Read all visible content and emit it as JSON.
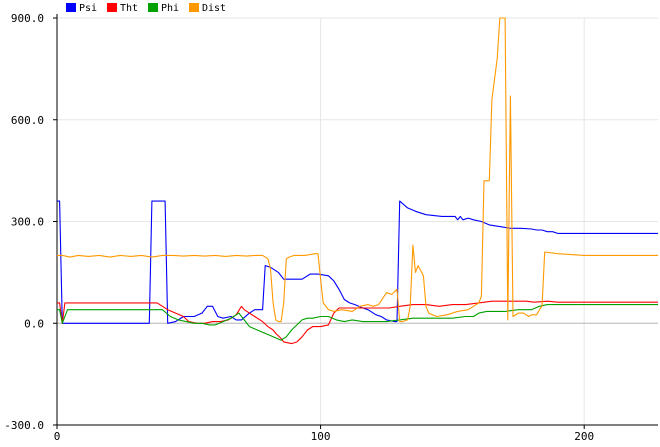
{
  "chart_data": {
    "type": "line",
    "title": "",
    "xlabel": "",
    "ylabel": "",
    "xlim": [
      0,
      228
    ],
    "ylim": [
      -300,
      900
    ],
    "x_ticks": [
      0,
      100,
      200
    ],
    "x_tick_labels": [
      "0",
      "100",
      "200"
    ],
    "y_ticks": [
      900,
      600,
      300,
      0,
      -300
    ],
    "y_tick_labels": [
      "900.0",
      "600.0",
      "300.0",
      "0.0",
      "-300.0"
    ],
    "grid": true,
    "legend_position": "top-left",
    "series": [
      {
        "name": "Psi",
        "color": "#0000ff",
        "points": [
          [
            0,
            360
          ],
          [
            1,
            360
          ],
          [
            2,
            0
          ],
          [
            35,
            0
          ],
          [
            36,
            360
          ],
          [
            41,
            360
          ],
          [
            42,
            0
          ],
          [
            45,
            5
          ],
          [
            48,
            20
          ],
          [
            52,
            20
          ],
          [
            55,
            30
          ],
          [
            57,
            50
          ],
          [
            59,
            50
          ],
          [
            61,
            20
          ],
          [
            63,
            15
          ],
          [
            66,
            20
          ],
          [
            68,
            10
          ],
          [
            70,
            10
          ],
          [
            73,
            30
          ],
          [
            75,
            40
          ],
          [
            78,
            40
          ],
          [
            79,
            170
          ],
          [
            81,
            165
          ],
          [
            84,
            150
          ],
          [
            86,
            130
          ],
          [
            89,
            130
          ],
          [
            93,
            130
          ],
          [
            96,
            145
          ],
          [
            99,
            145
          ],
          [
            103,
            140
          ],
          [
            105,
            125
          ],
          [
            107,
            100
          ],
          [
            109,
            70
          ],
          [
            111,
            60
          ],
          [
            113,
            55
          ],
          [
            116,
            45
          ],
          [
            118,
            40
          ],
          [
            121,
            25
          ],
          [
            123,
            20
          ],
          [
            125,
            10
          ],
          [
            128,
            5
          ],
          [
            129,
            5
          ],
          [
            130,
            360
          ],
          [
            133,
            340
          ],
          [
            136,
            330
          ],
          [
            140,
            320
          ],
          [
            146,
            315
          ],
          [
            151,
            315
          ],
          [
            152,
            305
          ],
          [
            153,
            315
          ],
          [
            154,
            305
          ],
          [
            156,
            310
          ],
          [
            158,
            305
          ],
          [
            161,
            300
          ],
          [
            164,
            290
          ],
          [
            168,
            285
          ],
          [
            172,
            280
          ],
          [
            176,
            280
          ],
          [
            180,
            278
          ],
          [
            182,
            275
          ],
          [
            184,
            275
          ],
          [
            186,
            270
          ],
          [
            188,
            270
          ],
          [
            190,
            265
          ],
          [
            200,
            265
          ],
          [
            210,
            265
          ],
          [
            228,
            265
          ]
        ]
      },
      {
        "name": "Tht",
        "color": "#ff0000",
        "points": [
          [
            0,
            60
          ],
          [
            1,
            60
          ],
          [
            2,
            0
          ],
          [
            3,
            60
          ],
          [
            35,
            60
          ],
          [
            38,
            60
          ],
          [
            42,
            40
          ],
          [
            45,
            30
          ],
          [
            48,
            20
          ],
          [
            50,
            5
          ],
          [
            53,
            0
          ],
          [
            56,
            0
          ],
          [
            59,
            5
          ],
          [
            62,
            5
          ],
          [
            65,
            10
          ],
          [
            68,
            25
          ],
          [
            70,
            50
          ],
          [
            71,
            40
          ],
          [
            73,
            30
          ],
          [
            75,
            20
          ],
          [
            78,
            5
          ],
          [
            80,
            -10
          ],
          [
            82,
            -20
          ],
          [
            83,
            -30
          ],
          [
            85,
            -45
          ],
          [
            86,
            -55
          ],
          [
            89,
            -60
          ],
          [
            91,
            -55
          ],
          [
            93,
            -40
          ],
          [
            95,
            -20
          ],
          [
            97,
            -10
          ],
          [
            100,
            -10
          ],
          [
            103,
            -5
          ],
          [
            105,
            30
          ],
          [
            107,
            45
          ],
          [
            110,
            45
          ],
          [
            115,
            45
          ],
          [
            120,
            45
          ],
          [
            126,
            45
          ],
          [
            130,
            50
          ],
          [
            135,
            55
          ],
          [
            140,
            55
          ],
          [
            145,
            50
          ],
          [
            150,
            55
          ],
          [
            155,
            55
          ],
          [
            160,
            60
          ],
          [
            165,
            65
          ],
          [
            170,
            65
          ],
          [
            175,
            65
          ],
          [
            178,
            65
          ],
          [
            181,
            62
          ],
          [
            186,
            65
          ],
          [
            190,
            62
          ],
          [
            195,
            62
          ],
          [
            205,
            62
          ],
          [
            228,
            62
          ]
        ]
      },
      {
        "name": "Phi",
        "color": "#00a000",
        "points": [
          [
            0,
            40
          ],
          [
            1,
            40
          ],
          [
            2,
            0
          ],
          [
            4,
            40
          ],
          [
            36,
            40
          ],
          [
            40,
            40
          ],
          [
            43,
            20
          ],
          [
            46,
            10
          ],
          [
            49,
            5
          ],
          [
            52,
            0
          ],
          [
            55,
            0
          ],
          [
            58,
            -5
          ],
          [
            60,
            -5
          ],
          [
            63,
            5
          ],
          [
            66,
            15
          ],
          [
            69,
            30
          ],
          [
            71,
            10
          ],
          [
            73,
            -10
          ],
          [
            76,
            -20
          ],
          [
            79,
            -30
          ],
          [
            82,
            -40
          ],
          [
            85,
            -50
          ],
          [
            87,
            -40
          ],
          [
            89,
            -20
          ],
          [
            91,
            -5
          ],
          [
            93,
            10
          ],
          [
            95,
            15
          ],
          [
            97,
            15
          ],
          [
            100,
            20
          ],
          [
            103,
            20
          ],
          [
            106,
            10
          ],
          [
            109,
            5
          ],
          [
            112,
            10
          ],
          [
            116,
            5
          ],
          [
            120,
            5
          ],
          [
            125,
            5
          ],
          [
            130,
            10
          ],
          [
            135,
            15
          ],
          [
            140,
            15
          ],
          [
            145,
            15
          ],
          [
            150,
            15
          ],
          [
            155,
            20
          ],
          [
            158,
            20
          ],
          [
            160,
            30
          ],
          [
            163,
            35
          ],
          [
            166,
            35
          ],
          [
            170,
            35
          ],
          [
            175,
            40
          ],
          [
            180,
            40
          ],
          [
            183,
            50
          ],
          [
            186,
            55
          ],
          [
            190,
            55
          ],
          [
            200,
            55
          ],
          [
            210,
            55
          ],
          [
            228,
            55
          ]
        ]
      },
      {
        "name": "Dist",
        "color": "#ff9900",
        "points": [
          [
            0,
            200
          ],
          [
            2,
            200
          ],
          [
            5,
            195
          ],
          [
            8,
            200
          ],
          [
            12,
            197
          ],
          [
            16,
            200
          ],
          [
            20,
            195
          ],
          [
            24,
            200
          ],
          [
            28,
            197
          ],
          [
            32,
            200
          ],
          [
            36,
            195
          ],
          [
            40,
            200
          ],
          [
            44,
            200
          ],
          [
            48,
            198
          ],
          [
            52,
            200
          ],
          [
            56,
            198
          ],
          [
            60,
            200
          ],
          [
            64,
            197
          ],
          [
            68,
            200
          ],
          [
            72,
            198
          ],
          [
            75,
            200
          ],
          [
            78,
            200
          ],
          [
            79,
            195
          ],
          [
            80,
            190
          ],
          [
            81,
            160
          ],
          [
            82,
            60
          ],
          [
            83,
            10
          ],
          [
            84,
            5
          ],
          [
            85,
            5
          ],
          [
            86,
            60
          ],
          [
            87,
            190
          ],
          [
            88,
            195
          ],
          [
            90,
            200
          ],
          [
            94,
            200
          ],
          [
            98,
            205
          ],
          [
            99,
            205
          ],
          [
            100,
            130
          ],
          [
            101,
            60
          ],
          [
            103,
            40
          ],
          [
            105,
            35
          ],
          [
            108,
            40
          ],
          [
            112,
            35
          ],
          [
            115,
            50
          ],
          [
            118,
            55
          ],
          [
            120,
            50
          ],
          [
            122,
            55
          ],
          [
            125,
            90
          ],
          [
            127,
            85
          ],
          [
            129,
            100
          ],
          [
            130,
            5
          ],
          [
            131,
            5
          ],
          [
            133,
            10
          ],
          [
            134,
            50
          ],
          [
            135,
            230
          ],
          [
            136,
            150
          ],
          [
            137,
            170
          ],
          [
            138,
            155
          ],
          [
            139,
            140
          ],
          [
            140,
            50
          ],
          [
            141,
            30
          ],
          [
            144,
            20
          ],
          [
            148,
            25
          ],
          [
            152,
            35
          ],
          [
            156,
            40
          ],
          [
            158,
            50
          ],
          [
            160,
            60
          ],
          [
            161,
            80
          ],
          [
            162,
            420
          ],
          [
            164,
            420
          ],
          [
            165,
            660
          ],
          [
            167,
            780
          ],
          [
            168,
            900
          ],
          [
            170,
            900
          ],
          [
            171,
            10
          ],
          [
            172,
            670
          ],
          [
            173,
            20
          ],
          [
            175,
            30
          ],
          [
            177,
            30
          ],
          [
            179,
            20
          ],
          [
            180,
            25
          ],
          [
            182,
            25
          ],
          [
            183,
            40
          ],
          [
            184,
            50
          ],
          [
            185,
            210
          ],
          [
            190,
            205
          ],
          [
            200,
            200
          ],
          [
            210,
            200
          ],
          [
            228,
            200
          ]
        ]
      }
    ]
  }
}
